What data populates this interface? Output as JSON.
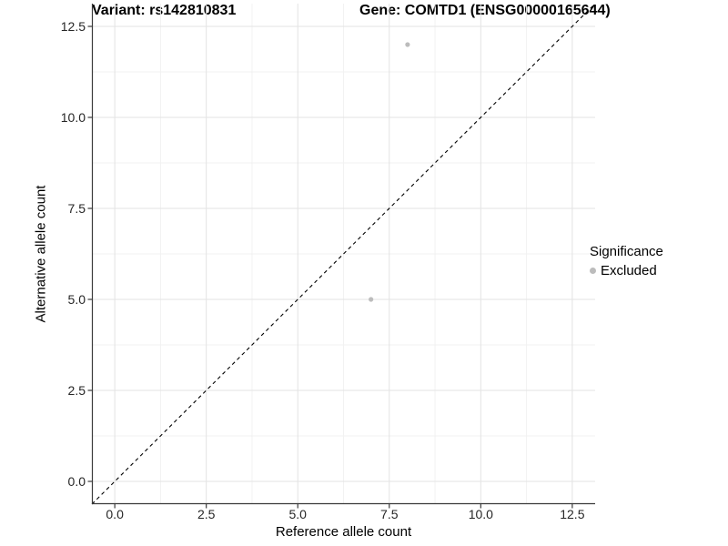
{
  "header": {
    "variant_title": "Variant: rs142810831",
    "gene_title": "Gene: COMTD1 (ENSG00000165644)"
  },
  "legend": {
    "title": "Significance",
    "items": [
      {
        "label": "Excluded",
        "color": "#bcbcbc"
      }
    ]
  },
  "colors": {
    "background": "#ffffff",
    "grid_major": "#e3e3e3",
    "grid_minor": "#f1f1f1",
    "spine": "#3a3a3a",
    "tick_mark": "#3a3a3a",
    "tick_text": "#262626",
    "point_excluded": "#bcbcbc",
    "identity_line": "#000000"
  },
  "chart_data": {
    "type": "scatter",
    "title": "Variant: rs142810831 | Gene: COMTD1 (ENSG00000165644)",
    "xlabel": "Reference allele count",
    "ylabel": "Alternative allele count",
    "xlim": [
      -0.625,
      13.125
    ],
    "ylim": [
      -0.625,
      13.125
    ],
    "x_ticks": {
      "values": [
        0,
        2.5,
        5,
        7.5,
        10,
        12.5
      ],
      "labels": [
        "0.0",
        "2.5",
        "5.0",
        "7.5",
        "10.0",
        "12.5"
      ]
    },
    "y_ticks": {
      "values": [
        0,
        2.5,
        5,
        7.5,
        10,
        12.5
      ],
      "labels": [
        "0.0",
        "2.5",
        "5.0",
        "7.5",
        "10.0",
        "12.5"
      ]
    },
    "minor_ticks": [
      1.25,
      3.75,
      6.25,
      8.75,
      11.25
    ],
    "grid": "major+minor",
    "legend_position": "right",
    "series": [
      {
        "name": "Excluded",
        "color": "#bcbcbc",
        "point_radius": 2.6,
        "points": [
          [
            8,
            12
          ],
          [
            7,
            5
          ]
        ]
      }
    ],
    "reference_line": {
      "type": "identity y=x",
      "style": "dashed",
      "color": "#000000"
    }
  }
}
